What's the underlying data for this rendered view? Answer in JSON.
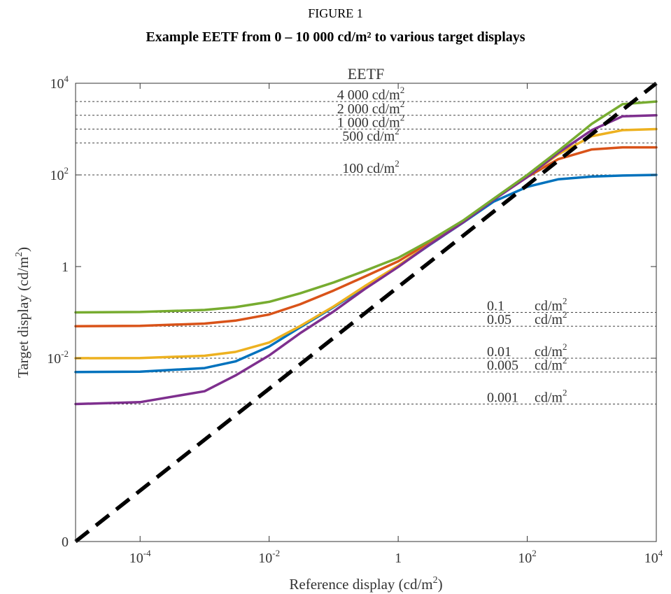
{
  "figure": {
    "number": "FIGURE 1",
    "title": "Example EETF from 0 – 10 000 cd/m² to various target displays"
  },
  "chart_data": {
    "type": "line",
    "title": "EETF",
    "xlabel": "Reference display (cd/m²)",
    "ylabel": "Target display (cd/m²)",
    "xscale": "log",
    "yscale": "log",
    "xlim": [
      1e-05,
      10000
    ],
    "ylim": [
      1e-06,
      10000
    ],
    "grid": false,
    "xticks": [
      {
        "value": 0.0001,
        "base": "10",
        "exp": "-4"
      },
      {
        "value": 0.01,
        "base": "10",
        "exp": "-2"
      },
      {
        "value": 1,
        "base": "1",
        "exp": ""
      },
      {
        "value": 100,
        "base": "10",
        "exp": "2"
      },
      {
        "value": 10000,
        "base": "10",
        "exp": "4"
      }
    ],
    "yticks": [
      {
        "value": 1e-06,
        "base": "0",
        "exp": ""
      },
      {
        "value": 0.01,
        "base": "10",
        "exp": "-2"
      },
      {
        "value": 1,
        "base": "1",
        "exp": ""
      },
      {
        "value": 100,
        "base": "10",
        "exp": "2"
      },
      {
        "value": 10000,
        "base": "10",
        "exp": "4"
      }
    ],
    "reference_lines": [
      {
        "value": 4000,
        "num": "4 000",
        "unit": "cd/m",
        "exp": "2"
      },
      {
        "value": 2000,
        "num": "2 000",
        "unit": "cd/m",
        "exp": "2"
      },
      {
        "value": 1000,
        "num": "1 000",
        "unit": "cd/m",
        "exp": "2"
      },
      {
        "value": 500,
        "num": "500",
        "unit": "cd/m",
        "exp": "2"
      },
      {
        "value": 100,
        "num": "100",
        "unit": "cd/m",
        "exp": "2"
      },
      {
        "value": 0.1,
        "num": "0.1",
        "unit": "cd/m",
        "exp": "2"
      },
      {
        "value": 0.05,
        "num": "0.05",
        "unit": "cd/m",
        "exp": "2"
      },
      {
        "value": 0.01,
        "num": "0.01",
        "unit": "cd/m",
        "exp": "2"
      },
      {
        "value": 0.005,
        "num": "0.005",
        "unit": "cd/m",
        "exp": "2"
      },
      {
        "value": 0.001,
        "num": "0.001",
        "unit": "cd/m",
        "exp": "2"
      }
    ],
    "identity_line": {
      "from": [
        1e-05,
        1e-06
      ],
      "to": [
        10000,
        10000
      ],
      "color": "#000000",
      "style": "dashed"
    },
    "series": [
      {
        "color": "#0072bd",
        "x": [
          1e-05,
          0.0001,
          0.001,
          0.003,
          0.01,
          0.03,
          0.1,
          0.3,
          1,
          3,
          10,
          30,
          100,
          300,
          1000,
          3000,
          10000
        ],
        "y": [
          0.005,
          0.0051,
          0.0061,
          0.0085,
          0.018,
          0.047,
          0.13,
          0.35,
          1.0,
          2.9,
          9.0,
          26,
          55,
          80,
          92,
          97,
          100
        ]
      },
      {
        "color": "#d95319",
        "x": [
          1e-05,
          0.0001,
          0.001,
          0.003,
          0.01,
          0.03,
          0.1,
          0.3,
          1,
          3,
          10,
          30,
          100,
          300,
          1000,
          3000,
          10000
        ],
        "y": [
          0.05,
          0.051,
          0.057,
          0.066,
          0.09,
          0.15,
          0.3,
          0.6,
          1.3,
          3.3,
          9.6,
          29,
          90,
          220,
          360,
          400,
          400
        ]
      },
      {
        "color": "#edb120",
        "x": [
          1e-05,
          0.0001,
          0.001,
          0.003,
          0.01,
          0.03,
          0.1,
          0.3,
          1,
          3,
          10,
          30,
          100,
          300,
          1000,
          3000,
          10000
        ],
        "y": [
          0.01,
          0.0101,
          0.0113,
          0.0137,
          0.022,
          0.05,
          0.135,
          0.37,
          1.05,
          3.0,
          9.2,
          29,
          92,
          280,
          700,
          950,
          1000
        ]
      },
      {
        "color": "#7e2f8e",
        "x": [
          1e-05,
          0.0001,
          0.001,
          0.003,
          0.01,
          0.03,
          0.1,
          0.3,
          1,
          3,
          10,
          30,
          100,
          300,
          1000,
          3000,
          10000
        ],
        "y": [
          0.001,
          0.0011,
          0.0019,
          0.0042,
          0.0115,
          0.035,
          0.105,
          0.32,
          0.98,
          2.95,
          9.1,
          28.5,
          90,
          300,
          950,
          1900,
          2000
        ]
      },
      {
        "color": "#77ac30",
        "x": [
          1e-05,
          0.0001,
          0.001,
          0.003,
          0.01,
          0.03,
          0.1,
          0.3,
          1,
          3,
          10,
          30,
          100,
          300,
          1000,
          3000,
          10000
        ],
        "y": [
          0.1,
          0.102,
          0.113,
          0.13,
          0.17,
          0.26,
          0.45,
          0.8,
          1.55,
          3.6,
          10,
          30,
          100,
          330,
          1300,
          3500,
          4000
        ]
      }
    ]
  }
}
